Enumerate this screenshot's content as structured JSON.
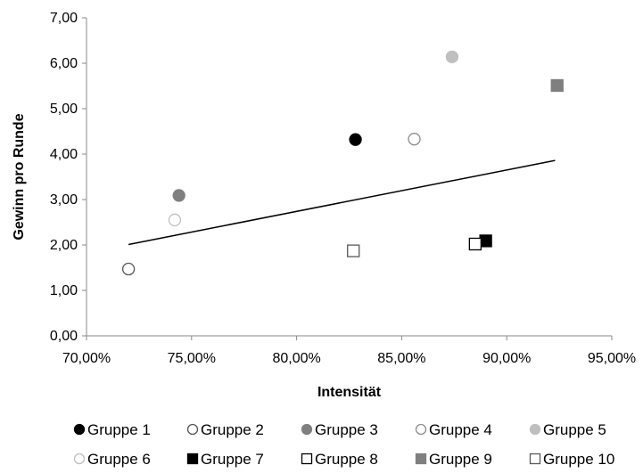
{
  "chart_data": {
    "type": "scatter",
    "title": "",
    "xlabel": "Intensität",
    "ylabel": "Gewinn pro Runde",
    "xlim": [
      0.7,
      0.95
    ],
    "ylim": [
      0,
      7
    ],
    "x_ticks": [
      "70,00%",
      "75,00%",
      "80,00%",
      "85,00%",
      "90,00%",
      "95,00%"
    ],
    "y_ticks": [
      "0,00",
      "1,00",
      "2,00",
      "3,00",
      "4,00",
      "5,00",
      "6,00",
      "7,00"
    ],
    "grid": false,
    "legend_position": "bottom",
    "series": [
      {
        "name": "Gruppe 1",
        "marker": "circle",
        "fill": "#000000",
        "stroke": "#000000",
        "x": 0.828,
        "y": 4.32
      },
      {
        "name": "Gruppe 2",
        "marker": "circle",
        "fill": "#ffffff",
        "stroke": "#555555",
        "x": 0.72,
        "y": 1.47
      },
      {
        "name": "Gruppe 3",
        "marker": "circle",
        "fill": "#7f7f7f",
        "stroke": "#7f7f7f",
        "x": 0.744,
        "y": 3.09
      },
      {
        "name": "Gruppe 4",
        "marker": "circle",
        "fill": "#ffffff",
        "stroke": "#8c8c8c",
        "x": 0.856,
        "y": 4.33
      },
      {
        "name": "Gruppe 5",
        "marker": "circle",
        "fill": "#bfbfbf",
        "stroke": "#bfbfbf",
        "x": 0.874,
        "y": 6.14
      },
      {
        "name": "Gruppe 6",
        "marker": "circle",
        "fill": "#ffffff",
        "stroke": "#bfbfbf",
        "x": 0.742,
        "y": 2.55
      },
      {
        "name": "Gruppe 7",
        "marker": "square",
        "fill": "#000000",
        "stroke": "#000000",
        "x": 0.89,
        "y": 2.09
      },
      {
        "name": "Gruppe 8",
        "marker": "square",
        "fill": "#ffffff",
        "stroke": "#000000",
        "x": 0.885,
        "y": 2.02
      },
      {
        "name": "Gruppe 9",
        "marker": "square",
        "fill": "#7f7f7f",
        "stroke": "#7f7f7f",
        "x": 0.924,
        "y": 5.51
      },
      {
        "name": "Gruppe 10",
        "marker": "square",
        "fill": "#ffffff",
        "stroke": "#595959",
        "x": 0.827,
        "y": 1.87
      }
    ],
    "trendline": {
      "type": "linear",
      "x": [
        0.72,
        0.923
      ],
      "y": [
        2.01,
        3.86
      ],
      "color": "#000000"
    }
  }
}
